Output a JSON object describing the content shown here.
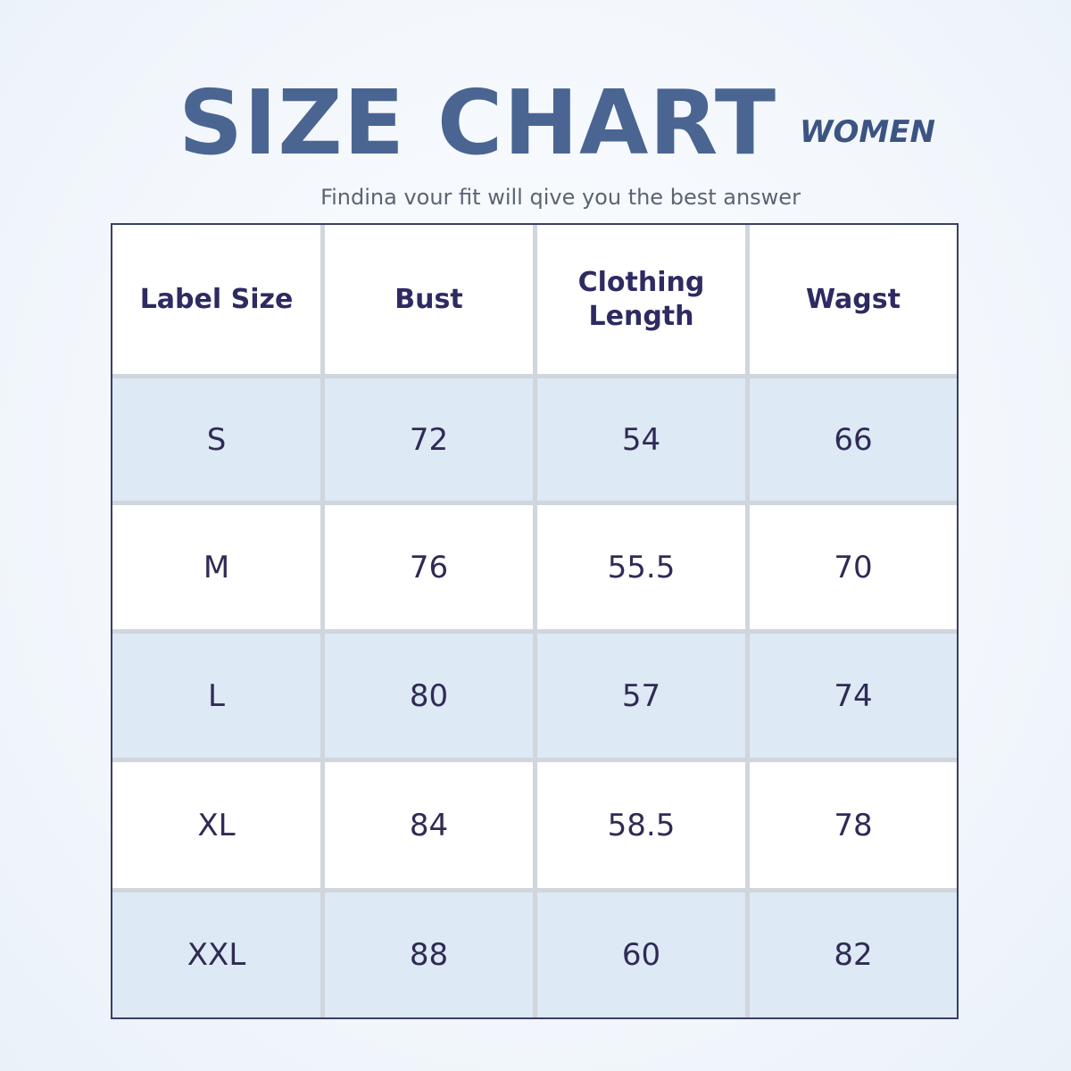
{
  "header": {
    "title": "SIZE CHART",
    "tag": "WOMEN",
    "subtitle": "Findina vour fit will qive you the best answer"
  },
  "table": {
    "columns": [
      "Label Size",
      "Bust",
      "Clothing Length",
      "Wagst"
    ],
    "rows": [
      [
        "S",
        "72",
        "54",
        "66"
      ],
      [
        "M",
        "76",
        "55.5",
        "70"
      ],
      [
        "L",
        "80",
        "57",
        "74"
      ],
      [
        "XL",
        "84",
        "58.5",
        "78"
      ],
      [
        "XXL",
        "88",
        "60",
        "82"
      ]
    ]
  },
  "colors": {
    "title": "#4a6592",
    "header_text": "#2e2a62",
    "row_highlight": "#dde9f5",
    "row_plain": "#ffffff",
    "grid_line": "#d1d5dc",
    "table_border": "#3b3f63"
  }
}
